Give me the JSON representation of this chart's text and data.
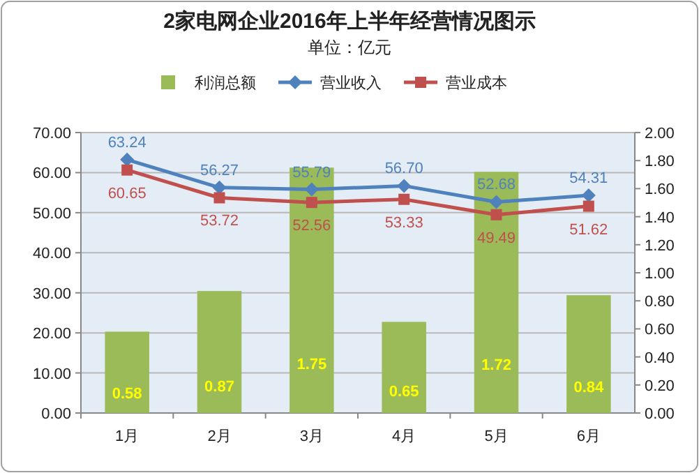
{
  "chart_data": {
    "type": "bar",
    "title": "2家电网企业2016年上半年经营情况图示",
    "subtitle": "单位：亿元",
    "categories": [
      "1月",
      "2月",
      "3月",
      "4月",
      "5月",
      "6月"
    ],
    "series": [
      {
        "name": "利润总额",
        "axis": "y2",
        "color": "#9bbb59",
        "values": [
          0.58,
          0.87,
          1.75,
          0.65,
          1.72,
          0.84
        ],
        "value_labels": [
          "0.58",
          "0.87",
          "1.75",
          "0.65",
          "1.72",
          "0.84"
        ]
      },
      {
        "name": "营业收入",
        "type": "line",
        "marker": "diamond",
        "color": "#4f81bd",
        "values": [
          63.24,
          56.27,
          55.79,
          56.7,
          52.68,
          54.31
        ],
        "value_labels": [
          "63.24",
          "56.27",
          "55.79",
          "56.70",
          "52.68",
          "54.31"
        ]
      },
      {
        "name": "营业成本",
        "type": "line",
        "marker": "square",
        "color": "#c0504d",
        "values": [
          60.65,
          53.72,
          52.56,
          53.33,
          49.49,
          51.62
        ],
        "value_labels": [
          "60.65",
          "53.72",
          "52.56",
          "53.33",
          "49.49",
          "51.62"
        ]
      }
    ],
    "ylim": [
      0,
      70
    ],
    "yticks": [
      {
        "value": 0,
        "label": "0.00"
      },
      {
        "value": 10,
        "label": "10.00"
      },
      {
        "value": 20,
        "label": "20.00"
      },
      {
        "value": 30,
        "label": "30.00"
      },
      {
        "value": 40,
        "label": "40.00"
      },
      {
        "value": 50,
        "label": "50.00"
      },
      {
        "value": 60,
        "label": "60.00"
      },
      {
        "value": 70,
        "label": "70.00"
      }
    ],
    "y2lim": [
      0,
      2
    ],
    "y2ticks": [
      {
        "value": 0,
        "label": "0.00"
      },
      {
        "value": 0.2,
        "label": "0.20"
      },
      {
        "value": 0.4,
        "label": "0.40"
      },
      {
        "value": 0.6,
        "label": "0.60"
      },
      {
        "value": 0.8,
        "label": "0.80"
      },
      {
        "value": 1,
        "label": "1.00"
      },
      {
        "value": 1.2,
        "label": "1.20"
      },
      {
        "value": 1.4,
        "label": "1.40"
      },
      {
        "value": 1.6,
        "label": "1.60"
      },
      {
        "value": 1.8,
        "label": "1.80"
      },
      {
        "value": 2,
        "label": "2.00"
      }
    ],
    "grid": "y",
    "legend": "top",
    "line_style": "solid"
  }
}
